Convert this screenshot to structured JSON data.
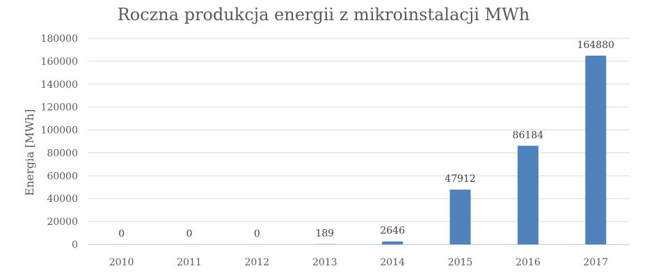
{
  "chart_data": {
    "type": "bar",
    "title": "Roczna produkcja energii z mikroinstalacji MWh",
    "xlabel": "",
    "ylabel": "Energia [MWh]",
    "categories": [
      "2010",
      "2011",
      "2012",
      "2013",
      "2014",
      "2015",
      "2016",
      "2017"
    ],
    "values": [
      0,
      0,
      0,
      189,
      2646,
      47912,
      86184,
      164880
    ],
    "data_labels": [
      "0",
      "0",
      "0",
      "189",
      "2646",
      "47912",
      "86184",
      "164880"
    ],
    "ylim": [
      0,
      180000
    ],
    "yticks": [
      0,
      20000,
      40000,
      60000,
      80000,
      100000,
      120000,
      140000,
      160000,
      180000
    ],
    "ytick_labels": [
      "0",
      "20000",
      "40000",
      "60000",
      "80000",
      "100000",
      "120000",
      "140000",
      "160000",
      "180000"
    ],
    "grid": true,
    "legend": "none",
    "colors": {
      "bar": "#4f81bd",
      "grid": "#d9d9d9",
      "axis_line": "#bfbfbf",
      "text": "#595959"
    }
  }
}
